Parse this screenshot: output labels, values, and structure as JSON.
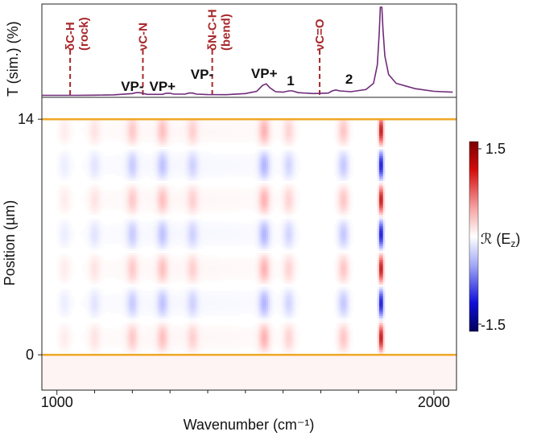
{
  "chart_data": [
    {
      "type": "line",
      "ylabel": "T (sim.) (%)",
      "series": [
        {
          "x": [
            960,
            1000,
            1050,
            1100,
            1150,
            1200,
            1210,
            1220,
            1230,
            1240,
            1280,
            1290,
            1300,
            1310,
            1340,
            1350,
            1360,
            1370,
            1400,
            1450,
            1500,
            1530,
            1545,
            1555,
            1565,
            1580,
            1600,
            1615,
            1625,
            1640,
            1680,
            1720,
            1730,
            1740,
            1750,
            1780,
            1820,
            1840,
            1850,
            1855,
            1858,
            1860,
            1862,
            1865,
            1870,
            1880,
            1900,
            1950,
            2000,
            2050
          ],
          "y": [
            0.5,
            0.5,
            0.5,
            0.6,
            1.0,
            2.5,
            3.5,
            3.5,
            2.5,
            1.5,
            1.5,
            2.8,
            2.8,
            1.8,
            1.8,
            3.0,
            3.0,
            1.8,
            1.3,
            1.2,
            2.5,
            5.0,
            11.5,
            13.5,
            9.0,
            4.5,
            4.0,
            5.5,
            5.5,
            3.5,
            2.5,
            3.0,
            5.5,
            6.5,
            5.5,
            4.5,
            7.0,
            14.0,
            35.0,
            70.0,
            100.0,
            100.0,
            100.0,
            75.0,
            45.0,
            24.0,
            14.0,
            8.0,
            5.0,
            4.0
          ]
        }
      ],
      "molecular_modes": [
        {
          "label": "δC-H (rock)",
          "x": 1035
        },
        {
          "label": "νC-N",
          "x": 1228
        },
        {
          "label": "δN-C-H (bend)",
          "x": 1412
        },
        {
          "label": "νC=O",
          "x": 1697
        }
      ],
      "peak_labels": [
        {
          "label": "VP-",
          "x": 1200
        },
        {
          "label": "VP+",
          "x": 1280
        },
        {
          "label": "VP-",
          "x": 1385
        },
        {
          "label": "VP+",
          "x": 1550
        },
        {
          "label": "1",
          "x": 1620
        },
        {
          "label": "2",
          "x": 1775
        }
      ]
    },
    {
      "type": "heatmap",
      "xlabel": "Wavenumber (cm⁻¹)",
      "ylabel": "Position (µm)",
      "xlim": [
        960,
        2060
      ],
      "ylim": [
        -2.1,
        15.3
      ],
      "x_ticks": [
        "1000",
        "2000"
      ],
      "y_ticks": [
        "0",
        "14"
      ],
      "boundaries": [
        0,
        14
      ],
      "boundary_color": "#f0a726",
      "colorbar": {
        "label": "ℛ (E",
        "sub": "z",
        "close": ")",
        "max_label": "1.5",
        "min_label": "-1.5",
        "vmin": -1.5,
        "vmax": 1.5
      },
      "bands": [
        {
          "x": 1860,
          "amp": 1.5
        },
        {
          "x": 1550,
          "amp": 0.45
        },
        {
          "x": 1760,
          "amp": 0.35
        },
        {
          "x": 1615,
          "amp": 0.25
        },
        {
          "x": 1280,
          "amp": 0.35
        },
        {
          "x": 1200,
          "amp": 0.3
        },
        {
          "x": 1360,
          "amp": 0.25
        },
        {
          "x": 1100,
          "amp": 0.15
        },
        {
          "x": 1020,
          "amp": 0.1
        }
      ]
    }
  ]
}
